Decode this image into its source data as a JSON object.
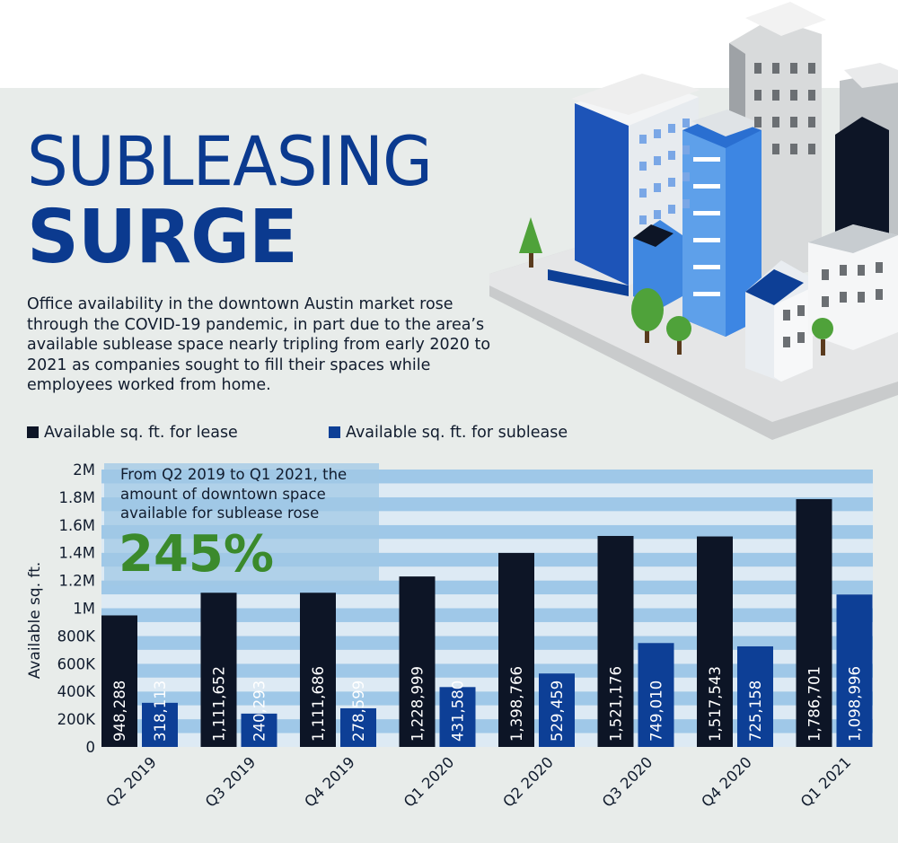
{
  "header": {
    "title_line1": "SUBLEASING",
    "title_line2": "SURGE",
    "intro": "Office availability in the downtown Austin market rose through the COVID-19 pandemic, in part due to the area’s available sublease space nearly tripling from early 2020 to 2021 as companies sought to fill their spaces while employees worked from home."
  },
  "callout": {
    "text": "From Q2 2019 to Q1 2021, the amount of downtown space available for sublease rose",
    "percent": "245%"
  },
  "colors": {
    "panel": "#e8ecea",
    "title": "#0b3a8f",
    "lease": "#0d1526",
    "sublease": "#0d3f96",
    "stripe_light": "#9fc8e8",
    "stripe_pale": "#ddeaf4",
    "callout_green": "#3b8a2c"
  },
  "chart_data": {
    "type": "bar",
    "title": "SUBLEASING SURGE",
    "ylabel": "Available sq. ft.",
    "xlabel": "",
    "ylim": [
      0,
      2000000
    ],
    "yticks": [
      0,
      200000,
      400000,
      600000,
      800000,
      1000000,
      1200000,
      1400000,
      1600000,
      1800000,
      2000000
    ],
    "ytick_labels": [
      "0",
      "200K",
      "400K",
      "600K",
      "800K",
      "1M",
      "1.2M",
      "1.4M",
      "1.6M",
      "1.8M",
      "2M"
    ],
    "categories": [
      "Q2 2019",
      "Q3 2019",
      "Q4 2019",
      "Q1 2020",
      "Q2 2020",
      "Q3 2020",
      "Q4 2020",
      "Q1 2021"
    ],
    "legend_position": "top-left",
    "series": [
      {
        "name": "Available sq. ft. for lease",
        "color": "#0d1526",
        "values": [
          948288,
          1111652,
          1111686,
          1228999,
          1398766,
          1521176,
          1517543,
          1786701
        ],
        "labels": [
          "948,288",
          "1,111,652",
          "1,111,686",
          "1,228,999",
          "1,398,766",
          "1,521,176",
          "1,517,543",
          "1,786,701"
        ]
      },
      {
        "name": "Available sq. ft. for sublease",
        "color": "#0d3f96",
        "values": [
          318113,
          240293,
          278599,
          431580,
          529459,
          749010,
          725158,
          1098996
        ],
        "labels": [
          "318,113",
          "240,293",
          "278,599",
          "431,580",
          "529,459",
          "749,010",
          "725,158",
          "1,098,996"
        ]
      }
    ]
  }
}
